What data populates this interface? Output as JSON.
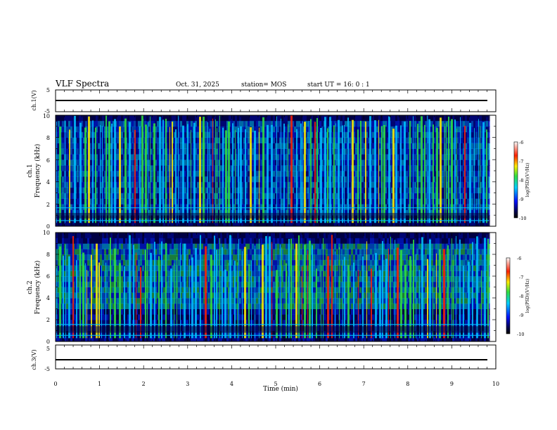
{
  "header": {
    "title": "VLF Spectra",
    "date": "Oct. 31, 2025",
    "station": "station= MOS",
    "start_ut": "start  UT =   16: 0   : 1"
  },
  "colors": {
    "spectrum_low": "#00004a",
    "spectrum_mid": "#00c0ff",
    "spectrum_green": "#30e040",
    "spectrum_high": "#ff2000"
  },
  "chart_data": [
    {
      "type": "line",
      "name": "ch1-waveform",
      "ylabel": "ch.1(V)",
      "ylim": [
        -5,
        5
      ],
      "yticks": [
        "5",
        "-5"
      ],
      "level": 0,
      "xlim": [
        0,
        10
      ]
    },
    {
      "type": "heatmap",
      "name": "ch1-spectrogram",
      "ylabel_top": "ch.1",
      "ylabel": "Frequency (kHz)",
      "ylim": [
        0,
        10
      ],
      "yticks": [
        "0",
        "2",
        "4",
        "6",
        "8",
        "10"
      ],
      "xlim": [
        0,
        10
      ],
      "data_end_min": 9.85,
      "colorbar": {
        "label": "log(PSD)(V²/Hz)",
        "ticks": [
          "-6",
          "-7",
          "-8",
          "-9",
          "-10"
        ],
        "range": [
          -10,
          -6
        ]
      }
    },
    {
      "type": "heatmap",
      "name": "ch2-spectrogram",
      "ylabel_top": "ch.2",
      "ylabel": "Frequency (kHz)",
      "ylim": [
        0,
        10
      ],
      "yticks": [
        "0",
        "2",
        "4",
        "6",
        "8",
        "10"
      ],
      "xlim": [
        0,
        10
      ],
      "data_end_min": 9.85,
      "colorbar": {
        "label": "log(PSD)(V²/Hz)",
        "ticks": [
          "-6",
          "-7",
          "-8",
          "-9",
          "-10"
        ],
        "range": [
          -10,
          -6
        ]
      }
    },
    {
      "type": "line",
      "name": "ch3-waveform",
      "ylabel": "ch.3(V)",
      "ylim": [
        -5,
        5
      ],
      "yticks": [
        "5",
        "-5"
      ],
      "level": 0,
      "xlim": [
        0,
        10
      ],
      "xlabel": "Time (min)",
      "xticks": [
        "0",
        "1",
        "2",
        "3",
        "4",
        "5",
        "6",
        "7",
        "8",
        "9",
        "10"
      ]
    }
  ]
}
